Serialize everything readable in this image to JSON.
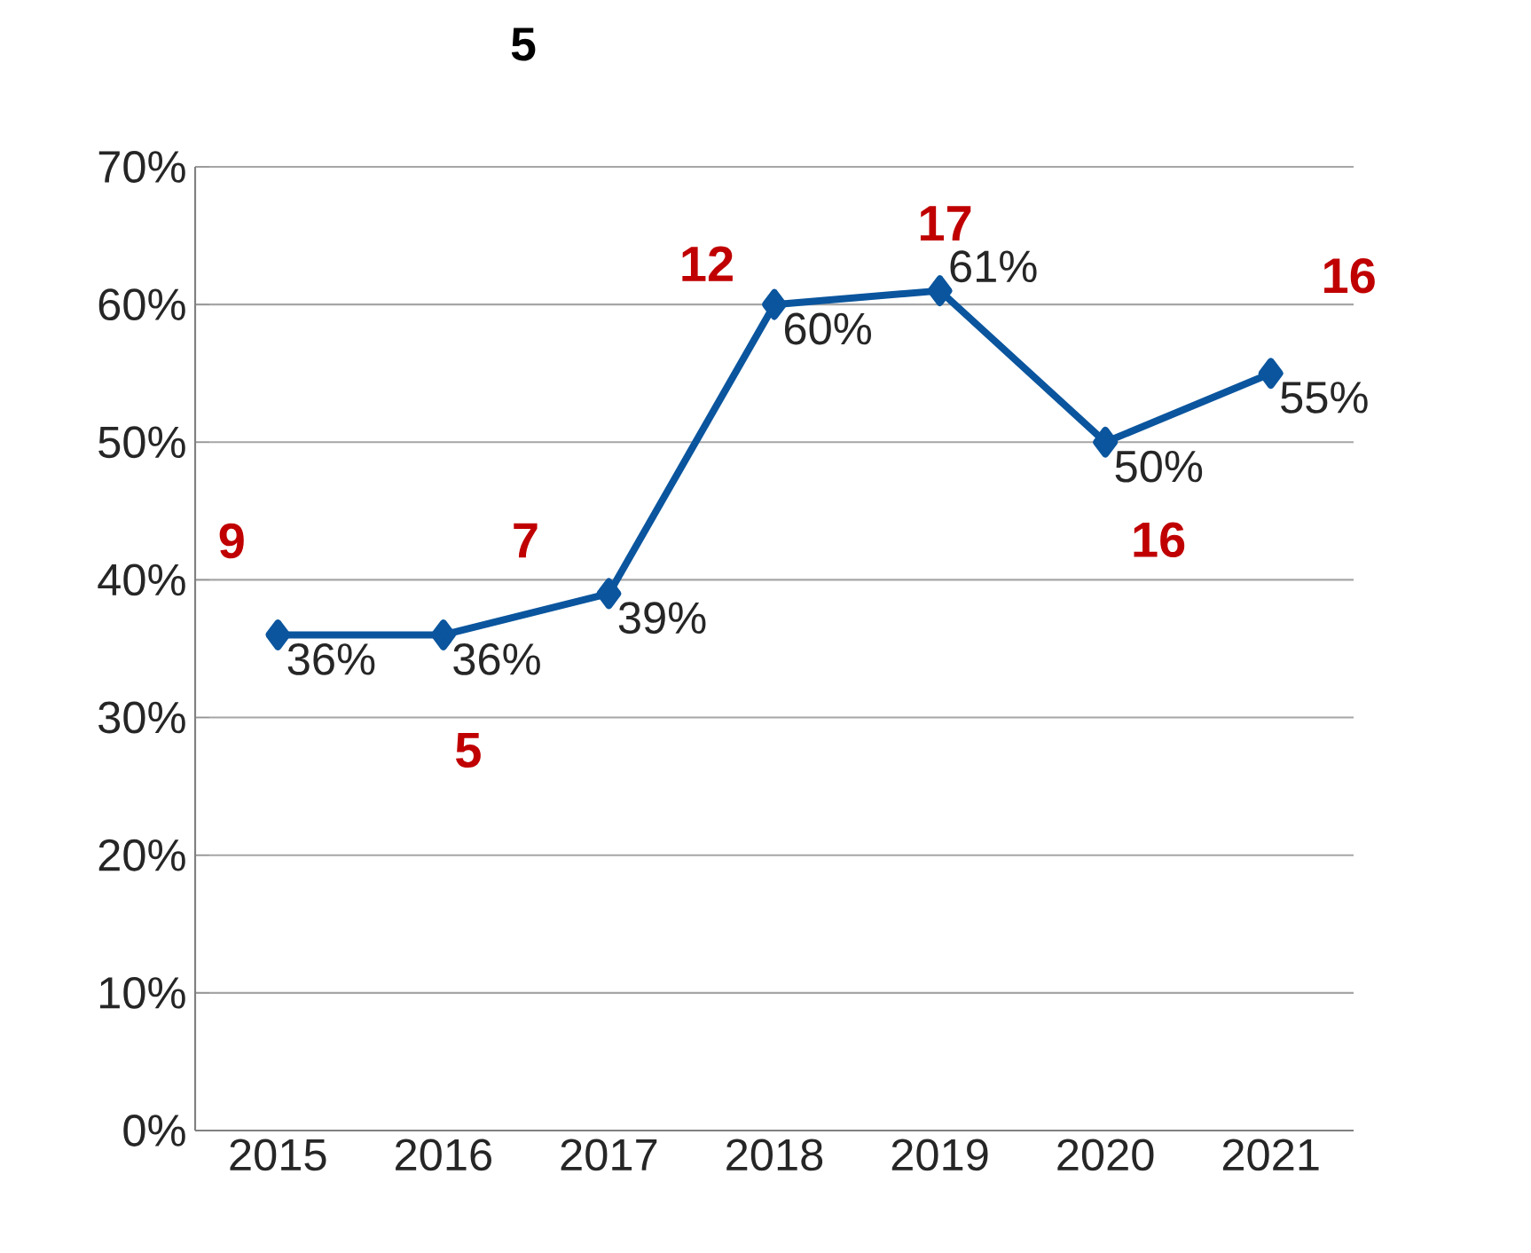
{
  "chart_data": {
    "type": "line",
    "title": "5",
    "categories": [
      "2015",
      "2016",
      "2017",
      "2018",
      "2019",
      "2020",
      "2021"
    ],
    "values": [
      36,
      36,
      39,
      60,
      61,
      50,
      55
    ],
    "value_labels": [
      "36%",
      "36%",
      "39%",
      "60%",
      "61%",
      "50%",
      "55%"
    ],
    "color": "#0a559e",
    "marker": "diamond",
    "line_style": "solid",
    "grid": "y",
    "ylim": [
      0,
      70
    ],
    "yticks": [
      {
        "value": 0,
        "label": "0%"
      },
      {
        "value": 10,
        "label": "10%"
      },
      {
        "value": 20,
        "label": "20%"
      },
      {
        "value": 30,
        "label": "30%"
      },
      {
        "value": 40,
        "label": "40%"
      },
      {
        "value": 50,
        "label": "50%"
      },
      {
        "value": 60,
        "label": "60%"
      },
      {
        "value": 70,
        "label": "70%"
      }
    ],
    "annotations": [
      "9",
      "5",
      "7",
      "12",
      "17",
      "16",
      "16"
    ]
  }
}
